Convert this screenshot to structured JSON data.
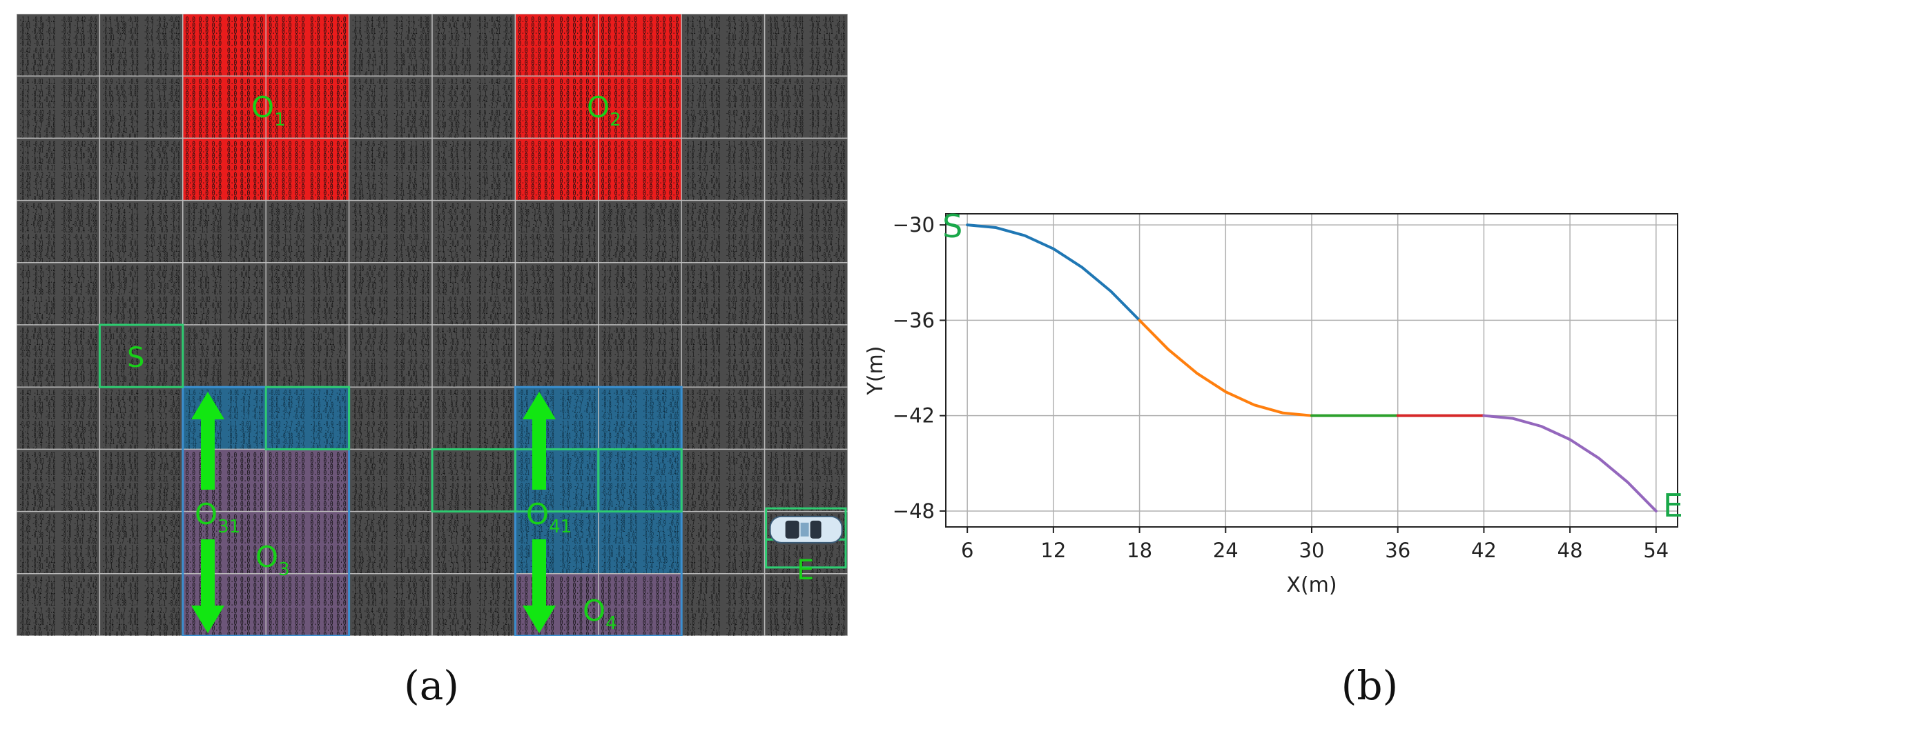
{
  "panel_a": {
    "caption": "(a)",
    "labels": {
      "start": "S",
      "end": "E",
      "o1": "O",
      "o1_sub": "1",
      "o2": "O",
      "o2_sub": "2",
      "o3": "O",
      "o3_sub": "3",
      "o31": "O",
      "o31_sub": "31",
      "o4": "O",
      "o4_sub": "4",
      "o41": "O",
      "o41_sub": "41"
    },
    "icons": [
      "car-icon",
      "arrow-up-icon",
      "arrow-down-icon"
    ],
    "colors": {
      "grid_bg": "#4b4b4b",
      "obstacle_red": "#ea1c1c",
      "region_blue": "#27688f",
      "region_purple": "#6d5679",
      "label_green": "#18d018"
    }
  },
  "panel_b": {
    "caption": "(b)"
  },
  "chart_data": {
    "type": "line",
    "xlabel": "X(m)",
    "ylabel": "Y(m)",
    "xlim": [
      4.5,
      55.5
    ],
    "ylim": [
      -49,
      -29.3
    ],
    "xticks": [
      6,
      12,
      18,
      24,
      30,
      36,
      42,
      48,
      54
    ],
    "yticks": [
      -30,
      -36,
      -42,
      -48
    ],
    "grid": true,
    "legend": "none",
    "annotations": [
      {
        "text": "S",
        "x": 6,
        "y": -30
      },
      {
        "text": "E",
        "x": 54,
        "y": -48
      }
    ],
    "series": [
      {
        "color": "#1f77b4",
        "x": [
          6,
          8,
          10,
          12,
          14,
          16,
          18
        ],
        "y": [
          -30,
          -30.17,
          -30.67,
          -31.5,
          -32.67,
          -34.17,
          -36
        ]
      },
      {
        "color": "#ff7f0e",
        "x": [
          18,
          20,
          22,
          24,
          26,
          28,
          30
        ],
        "y": [
          -36,
          -37.83,
          -39.33,
          -40.5,
          -41.33,
          -41.83,
          -42
        ]
      },
      {
        "color": "#2ca02c",
        "x": [
          30,
          36
        ],
        "y": [
          -42,
          -42
        ]
      },
      {
        "color": "#d62728",
        "x": [
          36,
          42
        ],
        "y": [
          -42,
          -42
        ]
      },
      {
        "color": "#9467bd",
        "x": [
          42,
          44,
          46,
          48,
          50,
          52,
          54
        ],
        "y": [
          -42,
          -42.17,
          -42.67,
          -43.5,
          -44.67,
          -46.17,
          -48
        ]
      }
    ]
  }
}
